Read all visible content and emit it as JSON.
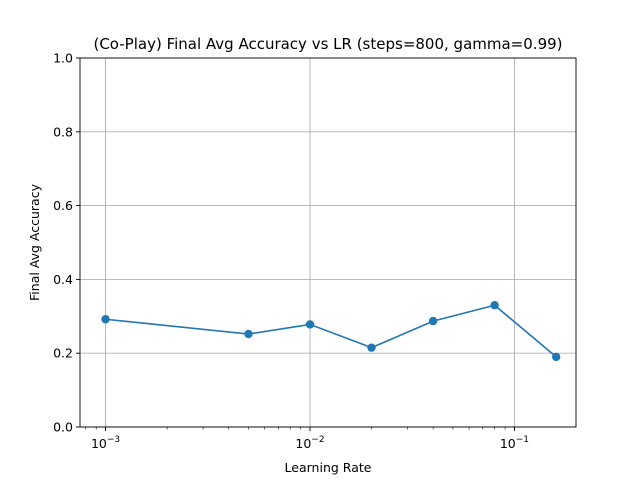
{
  "chart_data": {
    "type": "line",
    "title": "(Co-Play) Final Avg Accuracy vs LR (steps=800, gamma=0.99)",
    "xlabel": "Learning Rate",
    "ylabel": "Final Avg Accuracy",
    "x_scale": "log",
    "xlim": [
      0.00075,
      0.2
    ],
    "ylim": [
      0.0,
      1.0
    ],
    "grid": true,
    "x_ticks": [
      {
        "value": 0.001,
        "base": "10",
        "exp": "−3"
      },
      {
        "value": 0.01,
        "base": "10",
        "exp": "−2"
      },
      {
        "value": 0.1,
        "base": "10",
        "exp": "−1"
      }
    ],
    "y_ticks": [
      {
        "value": 0.0,
        "label": "0.0"
      },
      {
        "value": 0.2,
        "label": "0.2"
      },
      {
        "value": 0.4,
        "label": "0.4"
      },
      {
        "value": 0.6,
        "label": "0.6"
      },
      {
        "value": 0.8,
        "label": "0.8"
      },
      {
        "value": 1.0,
        "label": "1.0"
      }
    ],
    "series": [
      {
        "color": "#1f77b4",
        "x": [
          0.001,
          0.005,
          0.01,
          0.02,
          0.04,
          0.08,
          0.16
        ],
        "y": [
          0.292,
          0.252,
          0.278,
          0.215,
          0.287,
          0.33,
          0.19
        ]
      }
    ]
  }
}
